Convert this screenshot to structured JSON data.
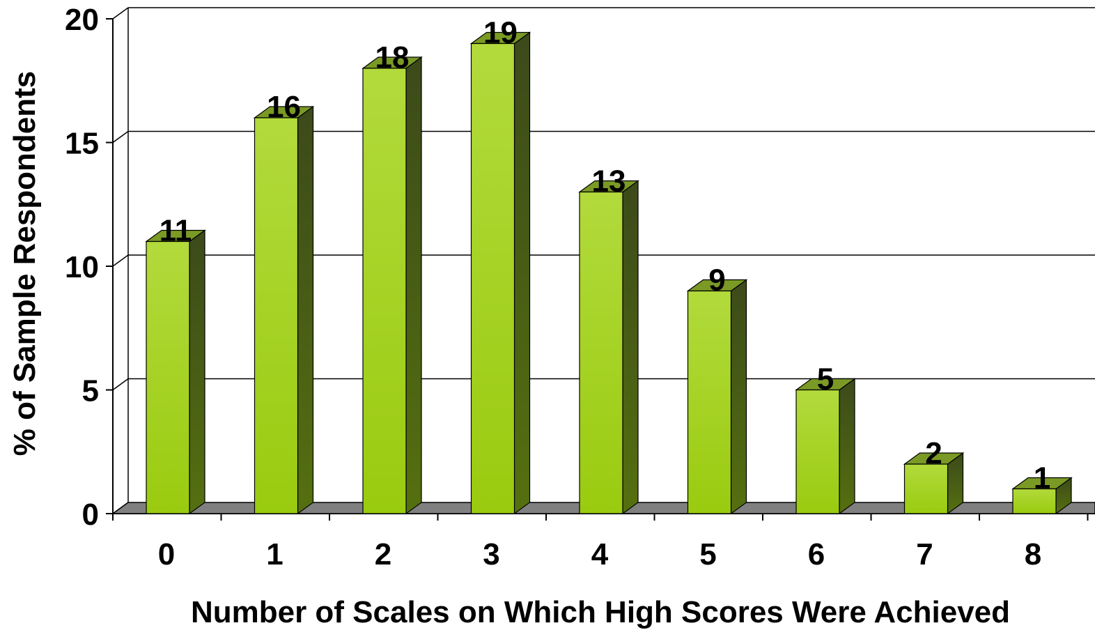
{
  "chart_data": {
    "type": "bar",
    "categories": [
      "0",
      "1",
      "2",
      "3",
      "4",
      "5",
      "6",
      "7",
      "8"
    ],
    "values": [
      11,
      16,
      18,
      19,
      13,
      9,
      5,
      2,
      1
    ],
    "data_labels": [
      "11",
      "16",
      "18",
      "19",
      "13",
      "9",
      "5",
      "2",
      "1"
    ],
    "title": "",
    "xlabel": "Number of Scales on Which High Scores Were Achieved",
    "ylabel": "% of Sample Respondents",
    "ylim": [
      0,
      20
    ],
    "yticks": [
      0,
      5,
      10,
      15,
      20
    ],
    "ytick_labels": [
      "0",
      "5",
      "10",
      "15",
      "20"
    ],
    "grid": true,
    "legend": "none",
    "style": "3d-bar",
    "colors": {
      "bar_front_top": "#b2da3c",
      "bar_front_bottom": "#9acb0f",
      "bar_side": "#4b5f1a",
      "bar_top": "#7a9a25",
      "floor": "#808080",
      "grid": "#000000"
    }
  }
}
